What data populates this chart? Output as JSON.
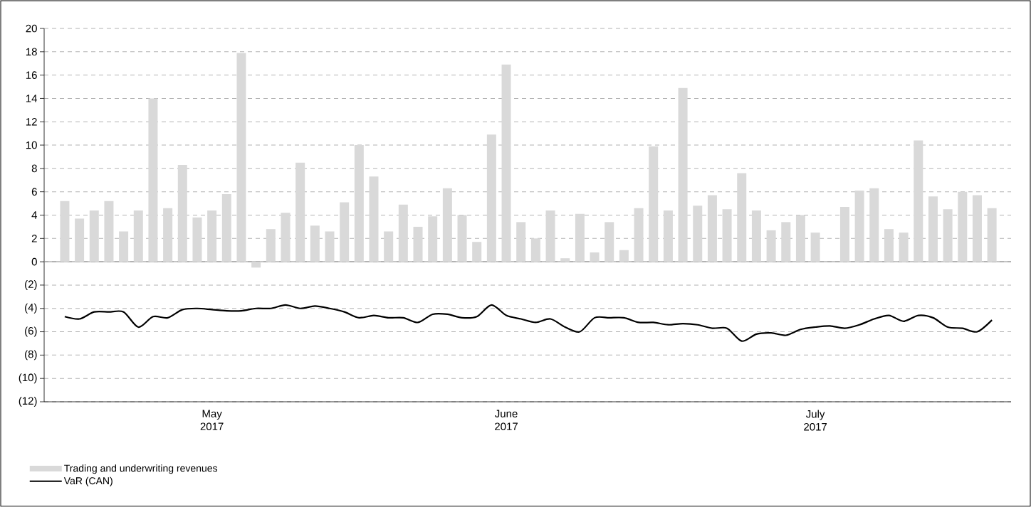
{
  "chart_data": {
    "type": "bar",
    "categories": [
      null,
      null,
      null,
      null,
      null,
      null,
      null,
      null,
      null,
      null,
      "May 2017",
      null,
      null,
      null,
      null,
      null,
      null,
      null,
      null,
      null,
      null,
      null,
      null,
      null,
      null,
      null,
      null,
      null,
      null,
      null,
      "June 2017",
      null,
      null,
      null,
      null,
      null,
      null,
      null,
      null,
      null,
      null,
      null,
      null,
      null,
      null,
      null,
      null,
      null,
      null,
      null,
      null,
      "July 2017",
      null,
      null,
      null,
      null,
      null,
      null,
      null,
      null,
      null,
      null,
      null,
      null
    ],
    "series": [
      {
        "name": "Trading and underwriting revenues",
        "color": "#d9d9d9",
        "values": [
          5.2,
          3.7,
          4.4,
          5.2,
          2.6,
          4.4,
          14.0,
          4.6,
          8.3,
          3.8,
          4.4,
          5.8,
          17.9,
          -0.5,
          2.8,
          4.2,
          8.5,
          3.1,
          2.6,
          5.1,
          10.0,
          7.3,
          2.6,
          4.9,
          3.0,
          3.9,
          6.3,
          4.0,
          1.7,
          10.9,
          16.9,
          3.4,
          2.0,
          4.4,
          0.3,
          4.1,
          0.8,
          3.4,
          1.0,
          4.6,
          9.9,
          4.4,
          14.9,
          4.8,
          5.7,
          4.5,
          7.6,
          4.4,
          2.7,
          3.4,
          4.0,
          2.5,
          null,
          4.7,
          6.1,
          6.3,
          2.8,
          2.5,
          10.4,
          5.6,
          4.5,
          6.0,
          5.7,
          4.6
        ]
      },
      {
        "name": "VaR (CAN)",
        "type": "line",
        "color": "#000000",
        "values": [
          -4.7,
          -4.9,
          -4.3,
          -4.3,
          -4.3,
          -5.6,
          -4.7,
          -4.8,
          -4.1,
          -4.0,
          -4.1,
          -4.2,
          -4.2,
          -4.0,
          -4.0,
          -3.7,
          -4.0,
          -3.8,
          -4.0,
          -4.3,
          -4.8,
          -4.6,
          -4.8,
          -4.8,
          -5.2,
          -4.5,
          -4.5,
          -4.8,
          -4.7,
          -3.7,
          -4.6,
          -4.9,
          -5.2,
          -4.9,
          -5.6,
          -6.0,
          -4.8,
          -4.8,
          -4.8,
          -5.2,
          -5.2,
          -5.4,
          -5.3,
          -5.4,
          -5.7,
          -5.7,
          -6.8,
          -6.2,
          -6.1,
          -6.3,
          -5.8,
          -5.6,
          -5.5,
          -5.7,
          -5.4,
          -4.9,
          -4.6,
          -5.1,
          -4.6,
          -4.8,
          -5.6,
          -5.7,
          -6.0,
          -5.0
        ]
      }
    ],
    "ylim": [
      -12,
      20
    ],
    "yticks": [
      {
        "value": -12,
        "label": "(12)"
      },
      {
        "value": -10,
        "label": "(10)"
      },
      {
        "value": -8,
        "label": "(8)"
      },
      {
        "value": -6,
        "label": "(6)"
      },
      {
        "value": -4,
        "label": "(4)"
      },
      {
        "value": -2,
        "label": "(2)"
      },
      0,
      2,
      4,
      6,
      8,
      10,
      12,
      14,
      16,
      18,
      20
    ],
    "grid": "y",
    "legend": "bottom",
    "marker": "none",
    "line_style": "solid"
  }
}
